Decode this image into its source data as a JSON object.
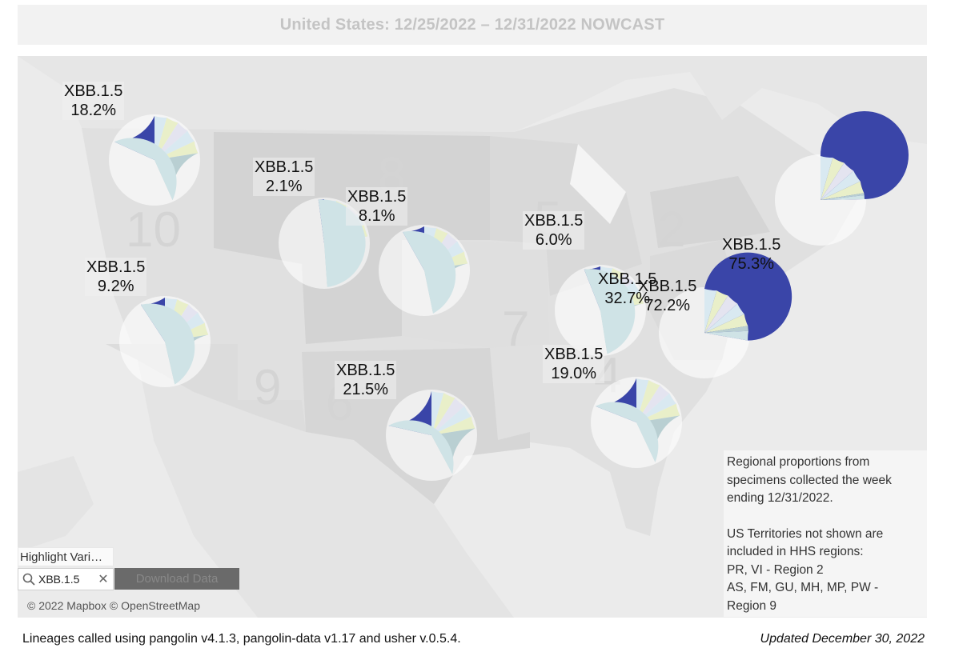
{
  "title": "United States: 12/25/2022 – 12/31/2022 NOWCAST",
  "colors": {
    "highlight": "#3a45a8",
    "base": "#cfe3e6",
    "slice_a": "#b9cfd2",
    "slice_b": "#e9efc9",
    "slice_c": "#d9e9f1",
    "slice_d": "#e4e4f0"
  },
  "region_numbers": [
    "10",
    "8",
    "5",
    "2",
    "7",
    "9",
    "6",
    "4"
  ],
  "regions": [
    {
      "name": "XBB.1.5",
      "value": "18.2%",
      "fraction": 0.182
    },
    {
      "name": "XBB.1.5",
      "value": "2.1%",
      "fraction": 0.021
    },
    {
      "name": "XBB.1.5",
      "value": "8.1%",
      "fraction": 0.081
    },
    {
      "name": "XBB.1.5",
      "value": "9.2%",
      "fraction": 0.092
    },
    {
      "name": "XBB.1.5",
      "value": "21.5%",
      "fraction": 0.215
    },
    {
      "name": "XBB.1.5",
      "value": "6.0%",
      "fraction": 0.06
    },
    {
      "name": "XBB.1.5",
      "value": "19.0%",
      "fraction": 0.19
    },
    {
      "name": "XBB.1.5",
      "value": "32.7%",
      "fraction": 0.327
    },
    {
      "name": "XBB.1.5",
      "value": "72.2%",
      "fraction": 0.722
    },
    {
      "name": "XBB.1.5",
      "value": "75.3%",
      "fraction": 0.753
    }
  ],
  "note": {
    "line1": "Regional proportions from",
    "line2": "specimens collected the week",
    "line3": "ending 12/31/2022.",
    "line4": "US Territories not shown are",
    "line5": "included in HHS regions:",
    "line6": "PR, VI - Region 2",
    "line7": "AS, FM, GU, MH, MP, PW -",
    "line8": "Region 9"
  },
  "highlight_label": "Highlight Vari…",
  "search": {
    "value": "XBB.1.5",
    "icon": "search-icon",
    "clear_icon": "close-icon"
  },
  "download_button": "Download Data",
  "attribution": "© 2022 Mapbox  © OpenStreetMap",
  "footer": {
    "left": "Lineages called using pangolin v4.1.3, pangolin-data v1.17 and usher v.0.5.4.",
    "right": "Updated December 30, 2022"
  }
}
